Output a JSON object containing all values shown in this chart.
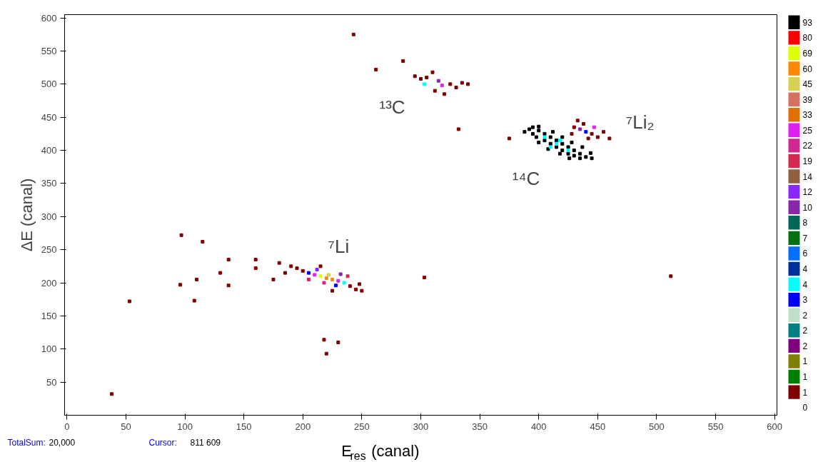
{
  "chart_data": {
    "type": "scatter",
    "xlabel": "E$_{res}$ (canal)",
    "ylabel": "ΔE (canal)",
    "xlim": [
      -2,
      602
    ],
    "ylim": [
      0,
      605
    ],
    "xticks": [
      0,
      50,
      100,
      150,
      200,
      250,
      300,
      350,
      400,
      450,
      500,
      550,
      600
    ],
    "yticks": [
      50,
      100,
      150,
      200,
      250,
      300,
      350,
      400,
      450,
      500,
      550,
      600
    ],
    "grid": false,
    "legend": "right",
    "marker": "square",
    "annotations": [
      {
        "text": "¹³C",
        "x": 300,
        "y": 508
      },
      {
        "text": "¹⁴C",
        "x": 400,
        "y": 412
      },
      {
        "text": "⁷Li₂",
        "x": 460,
        "y": 418
      },
      {
        "text": "⁷Li",
        "x": 205,
        "y": 215
      },
      "TotalSum:",
      "20,000",
      "Cursor:",
      "811  609"
    ],
    "series": [
      {
        "name": "93",
        "color": "#000000",
        "x": [
          392,
          395,
          398,
          400,
          405,
          405,
          410,
          410,
          415,
          415,
          420,
          420,
          425,
          425,
          430,
          430,
          435,
          435,
          440,
          445,
          395,
          388,
          400,
          412,
          420,
          428,
          437,
          444,
          400,
          408,
          418,
          426
        ],
        "values": [
          432,
          425,
          420,
          430,
          425,
          415,
          420,
          410,
          415,
          405,
          410,
          400,
          405,
          395,
          400,
          392,
          395,
          388,
          390,
          388,
          435,
          428,
          436,
          428,
          420,
          412,
          405,
          396,
          412,
          402,
          395,
          388
        ]
      },
      {
        "name": "80",
        "color": "#ff0000"
      },
      {
        "name": "69",
        "color": "#ddff00",
        "x": [
          215
        ],
        "values": [
          210
        ]
      },
      {
        "name": "60",
        "color": "#ff8800",
        "x": [
          220,
          225
        ],
        "values": [
          207,
          205
        ]
      },
      {
        "name": "45",
        "color": "#d8d050",
        "x": [
          222
        ],
        "values": [
          212
        ]
      },
      {
        "name": "39",
        "color": "#d87060"
      },
      {
        "name": "33",
        "color": "#e07000"
      },
      {
        "name": "25",
        "color": "#e020f0",
        "x": [
          210,
          230,
          318,
          447
        ],
        "values": [
          212,
          203,
          498,
          435
        ]
      },
      {
        "name": "22",
        "color": "#d02890",
        "x": [
          218
        ],
        "values": [
          200
        ]
      },
      {
        "name": "19",
        "color": "#d82850",
        "x": [
          205,
          238
        ],
        "values": [
          205,
          210
        ]
      },
      {
        "name": "14",
        "color": "#906040"
      },
      {
        "name": "12",
        "color": "#8828ff",
        "x": [
          212
        ],
        "values": [
          220
        ]
      },
      {
        "name": "10",
        "color": "#8828a8",
        "x": [
          232,
          315,
          435
        ],
        "values": [
          213,
          505,
          432
        ]
      },
      {
        "name": "8",
        "color": "#006858"
      },
      {
        "name": "7",
        "color": "#007010"
      },
      {
        "name": "6",
        "color": "#0070ff"
      },
      {
        "name": "4",
        "color": "#0030a0"
      },
      {
        "name": "4",
        "color": "#00ffff",
        "x": [
          235,
          303,
          405,
          415,
          425,
          418,
          410
        ],
        "values": [
          200,
          500,
          420,
          410,
          400,
          415,
          405
        ]
      },
      {
        "name": "3",
        "color": "#0000ff",
        "x": [
          205,
          228,
          440
        ],
        "values": [
          215,
          196,
          428
        ]
      },
      {
        "name": "2",
        "color": "#c0e0c8"
      },
      {
        "name": "2",
        "color": "#008080"
      },
      {
        "name": "2",
        "color": "#800080"
      },
      {
        "name": "1",
        "color": "#808000"
      },
      {
        "name": "1",
        "color": "#008000"
      },
      {
        "name": "1",
        "color": "#800000",
        "x": [
          200,
          240,
          195,
          245,
          190,
          185,
          248,
          225,
          215,
          175,
          180,
          250,
          305,
          325,
          300,
          330,
          295,
          310,
          335,
          320,
          340,
          312,
          445,
          430,
          450,
          438,
          455,
          428,
          442,
          460,
          433,
          97,
          115,
          96,
          110,
          53,
          108,
          137,
          130,
          137,
          160,
          160,
          218,
          220,
          230,
          243,
          303,
          512,
          38,
          285,
          262,
          332,
          375
        ],
        "values": [
          218,
          195,
          222,
          190,
          225,
          215,
          198,
          188,
          225,
          205,
          230,
          188,
          510,
          500,
          508,
          495,
          512,
          518,
          502,
          485,
          500,
          490,
          425,
          435,
          420,
          440,
          428,
          425,
          418,
          418,
          445,
          272,
          262,
          197,
          205,
          172,
          173,
          235,
          215,
          196,
          235,
          222,
          114,
          93,
          110,
          575,
          208,
          210,
          32,
          535,
          522,
          432,
          418
        ]
      },
      {
        "name": "0"
      }
    ]
  }
}
